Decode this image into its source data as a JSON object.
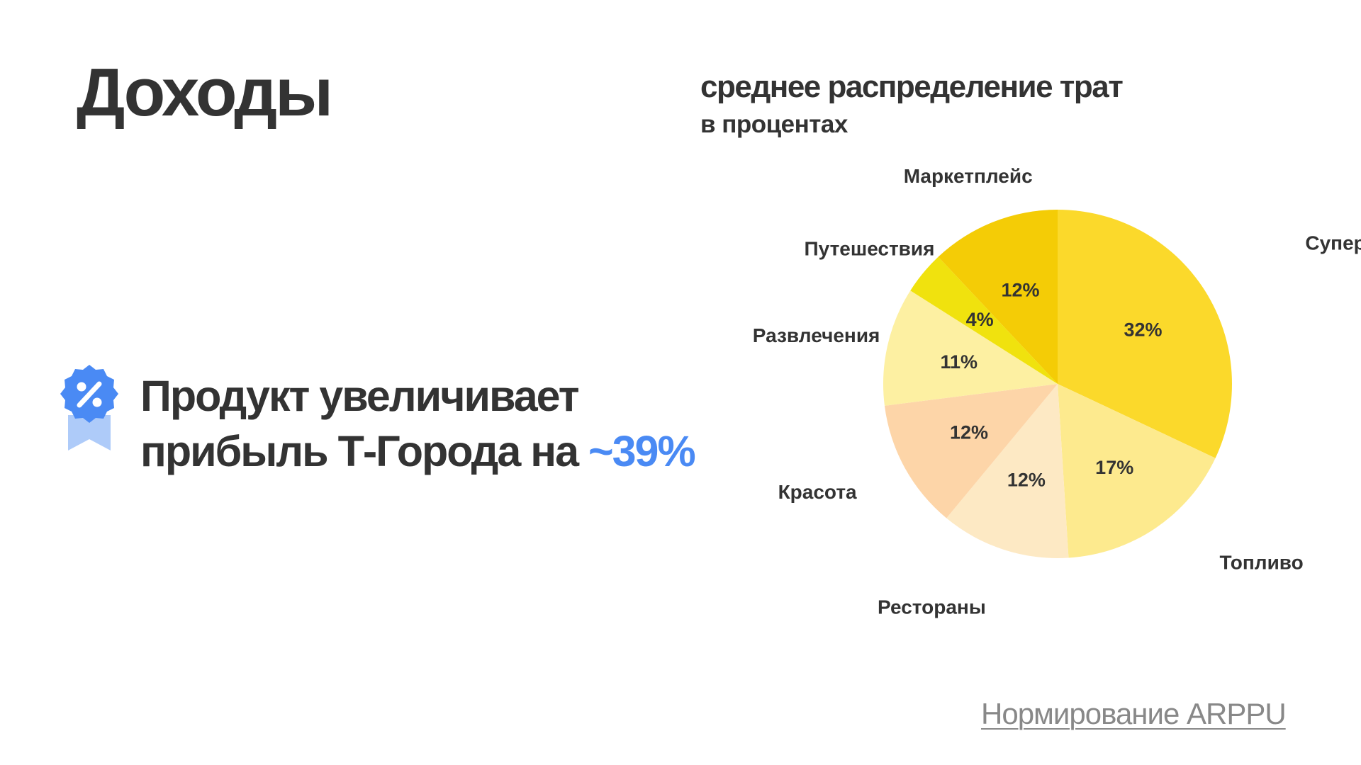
{
  "page": {
    "title": "Доходы"
  },
  "headline": {
    "line1": "Продукт увеличивает",
    "line2_prefix": "прибыль Т-Города на ",
    "highlight": "~39%",
    "accent_color": "#4a8af4"
  },
  "badge": {
    "icon": "percent-badge-icon",
    "color": "#4a8af4"
  },
  "footer": {
    "link_label": "Нормирование ARPPU"
  },
  "chart_data": {
    "type": "pie",
    "title": "среднее распределение трат",
    "subtitle": "в процентах",
    "categories": [
      "Супермаркеты",
      "Топливо",
      "Рестораны",
      "Красота",
      "Развлечения",
      "Путешествия",
      "Маркетплейс"
    ],
    "values": [
      32,
      17,
      12,
      12,
      11,
      4,
      12
    ],
    "value_labels": [
      "32%",
      "17%",
      "12%",
      "12%",
      "11%",
      "4%",
      "12%"
    ],
    "colors": [
      "#fbd92b",
      "#fdea8e",
      "#fde9c4",
      "#fdd5a8",
      "#fdf0a2",
      "#f0e20e",
      "#f4cc06"
    ],
    "start": "12 o'clock",
    "direction": "clockwise",
    "legend": "none"
  }
}
